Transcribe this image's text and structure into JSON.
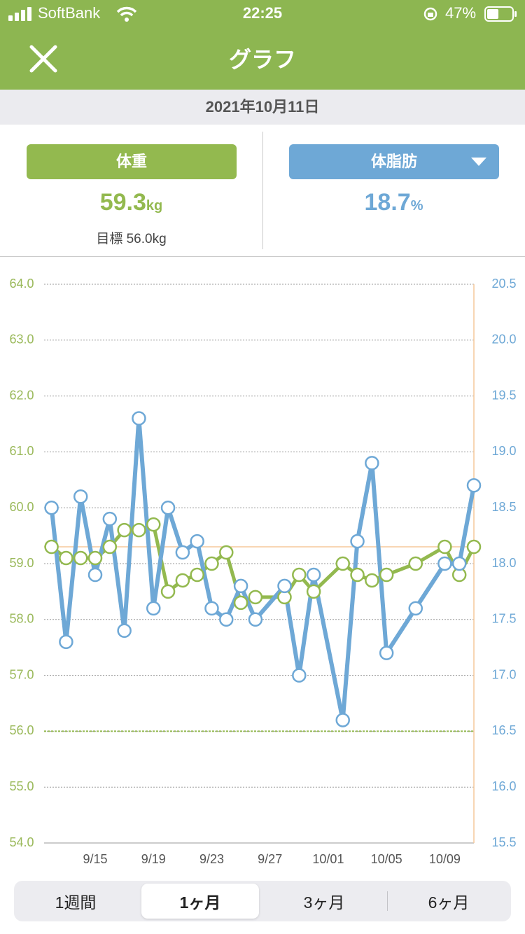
{
  "status_bar": {
    "carrier": "SoftBank",
    "time": "22:25",
    "battery": "47%"
  },
  "header": {
    "title": "グラフ"
  },
  "date": "2021年10月11日",
  "summary": {
    "weight": {
      "label": "体重",
      "value": "59.3",
      "unit": "kg",
      "goal_label": "目標",
      "goal_value": "56.0",
      "goal_unit": "kg"
    },
    "body_fat": {
      "label": "体脂肪",
      "value": "18.7",
      "unit": "%"
    }
  },
  "chart_data": {
    "type": "line",
    "x": [
      "9/12",
      "9/13",
      "9/14",
      "9/15",
      "9/16",
      "9/17",
      "9/18",
      "9/19",
      "9/20",
      "9/21",
      "9/22",
      "9/23",
      "9/24",
      "9/25",
      "9/26",
      "9/28",
      "9/29",
      "9/30",
      "10/02",
      "10/03",
      "10/04",
      "10/05",
      "10/07",
      "10/09",
      "10/10",
      "10/11"
    ],
    "xticks": [
      "9/15",
      "9/19",
      "9/23",
      "9/27",
      "10/01",
      "10/05",
      "10/09"
    ],
    "series": [
      {
        "color": "#93b94f",
        "axis": "y",
        "values": [
          59.3,
          59.1,
          59.1,
          59.1,
          59.3,
          59.6,
          59.6,
          59.7,
          58.5,
          58.7,
          58.8,
          59.0,
          59.2,
          58.3,
          58.4,
          58.4,
          58.8,
          58.5,
          59.0,
          58.8,
          58.7,
          58.8,
          59.0,
          59.3,
          58.8,
          59.3
        ]
      },
      {
        "color": "#6ea8d6",
        "axis": "y2",
        "values": [
          18.5,
          17.3,
          18.6,
          17.9,
          18.4,
          17.4,
          19.3,
          17.6,
          18.5,
          18.1,
          18.2,
          17.6,
          17.5,
          17.8,
          17.5,
          17.8,
          17.0,
          17.9,
          16.6,
          18.2,
          18.9,
          17.2,
          17.6,
          18.0,
          18.0,
          18.7
        ]
      }
    ],
    "ylim": [
      54,
      64
    ],
    "yticks": [
      {
        "value": 54,
        "label": "54.0"
      },
      {
        "value": 55,
        "label": "55.0"
      },
      {
        "value": 56,
        "label": "56.0"
      },
      {
        "value": 57,
        "label": "57.0"
      },
      {
        "value": 58,
        "label": "58.0"
      },
      {
        "value": 59,
        "label": "59.0"
      },
      {
        "value": 60,
        "label": "60.0"
      },
      {
        "value": 61,
        "label": "61.0"
      },
      {
        "value": 62,
        "label": "62.0"
      },
      {
        "value": 63,
        "label": "63.0"
      },
      {
        "value": 64,
        "label": "64.0"
      }
    ],
    "y2lim": [
      15.5,
      20.5
    ],
    "y2ticks": [
      15.5,
      {
        "value": 16,
        "label": "16.0"
      },
      16.5,
      {
        "value": 17,
        "label": "17.0"
      },
      17.5,
      {
        "value": 18,
        "label": "18.0"
      },
      18.5,
      {
        "value": 19,
        "label": "19.0"
      },
      19.5,
      {
        "value": 20,
        "label": "20.0"
      },
      20.5
    ],
    "grid": true
  },
  "tabs": [
    "1週間",
    "1ヶ月",
    "3ヶ月",
    "6ヶ月"
  ],
  "selected_tab": 1
}
